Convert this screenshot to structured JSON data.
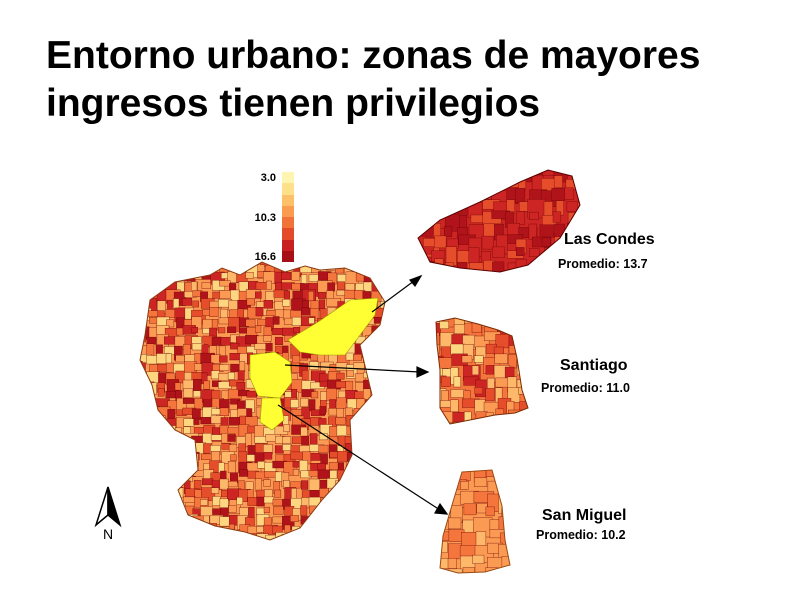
{
  "title": "Entorno urbano: zonas de mayores ingresos tienen privilegios",
  "legend": {
    "labels": [
      "3.0",
      "10.3",
      "16.6"
    ],
    "colors": [
      "#fff5b0",
      "#fde08a",
      "#fcc06a",
      "#fa9c50",
      "#f2733a",
      "#e24a2a",
      "#c82021",
      "#a50f15"
    ]
  },
  "palette": [
    "#fff2a8",
    "#fed680",
    "#fdb86a",
    "#fb9a52",
    "#f4763d",
    "#e54d2b",
    "#cc2523",
    "#b0141a"
  ],
  "highlight_color": "#ffff33",
  "outline_color": "#6b0000",
  "areas": [
    {
      "name": "Las Condes",
      "avg_label": "Promedio: 13.7",
      "avg_value": 13.7
    },
    {
      "name": "Santiago",
      "avg_label": "Promedio: 11.0",
      "avg_value": 11.0
    },
    {
      "name": "San Miguel",
      "avg_label": "Promedio: 10.2",
      "avg_value": 10.2
    }
  ],
  "north_label": "N"
}
